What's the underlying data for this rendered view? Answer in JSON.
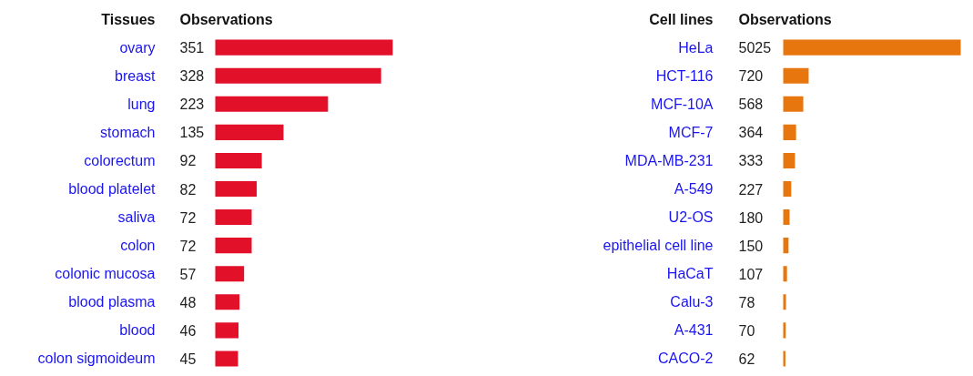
{
  "chart_data": [
    {
      "type": "bar",
      "orientation": "horizontal",
      "ylabel": "Tissues",
      "xlabel": "Observations",
      "color": "#e3102a",
      "data_labels": true,
      "categories": [
        "ovary",
        "breast",
        "lung",
        "stomach",
        "colorectum",
        "blood platelet",
        "saliva",
        "colon",
        "colonic mucosa",
        "blood plasma",
        "blood",
        "colon sigmoideum"
      ],
      "values": [
        351,
        328,
        223,
        135,
        92,
        82,
        72,
        72,
        57,
        48,
        46,
        45
      ]
    },
    {
      "type": "bar",
      "orientation": "horizontal",
      "ylabel": "Cell lines",
      "xlabel": "Observations",
      "color": "#e8760e",
      "data_labels": true,
      "categories": [
        "HeLa",
        "HCT-116",
        "MCF-10A",
        "MCF-7",
        "MDA-MB-231",
        "A-549",
        "U2-OS",
        "epithelial cell line",
        "HaCaT",
        "Calu-3",
        "A-431",
        "CACO-2"
      ],
      "values": [
        5025,
        720,
        568,
        364,
        333,
        227,
        180,
        150,
        107,
        78,
        70,
        62
      ]
    }
  ]
}
